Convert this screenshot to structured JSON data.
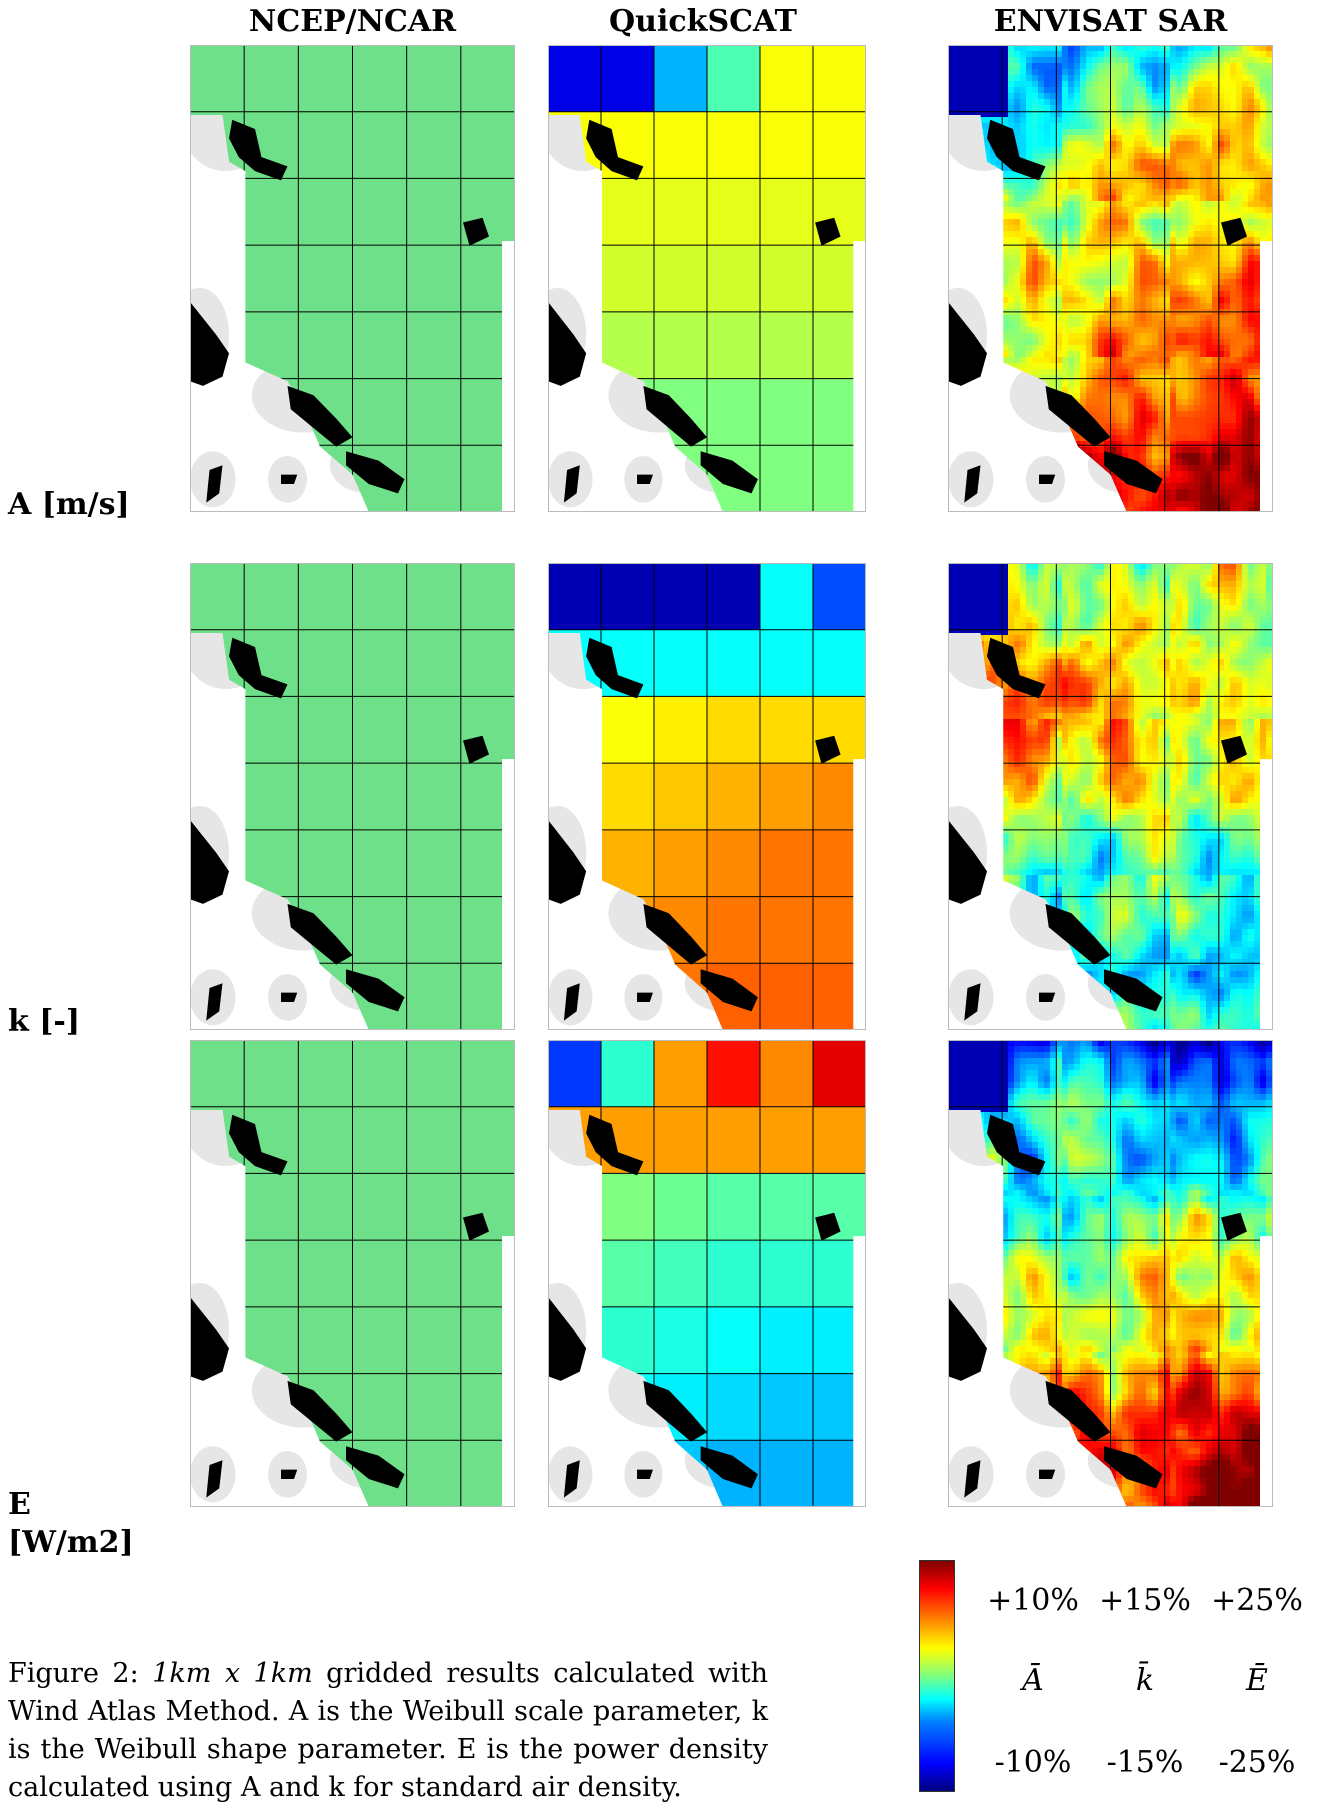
{
  "columns": [
    "NCEP/NCAR",
    "QuickSCAT",
    "ENVISAT SAR"
  ],
  "rows": [
    {
      "label": "A [m/s]"
    },
    {
      "label": "k [-]"
    },
    {
      "label_line1": "E",
      "label_line2": "[W/m2]"
    }
  ],
  "colorbar": {
    "columns": [
      {
        "top": "+10%",
        "mid": "Ā",
        "bottom": "-10%"
      },
      {
        "top": "+15%",
        "mid": "k̄",
        "bottom": "-15%"
      },
      {
        "top": "+25%",
        "mid": "Ē",
        "bottom": "-25%"
      }
    ],
    "colormap": "jet"
  },
  "caption": {
    "prefix": "Figure 2:  ",
    "grid_size": "1km x 1km",
    "text": " gridded results calculated with Wind Atlas Method. A is the Weibull scale parameter, k is the Weibull shape parameter. E is the power density calculated using A and k for standard air density."
  },
  "colors": {
    "ncep_fill": "#6fe08a",
    "land": "#000000",
    "coast_buffer": "#e6e6e6",
    "grid_line": "#000000"
  }
}
